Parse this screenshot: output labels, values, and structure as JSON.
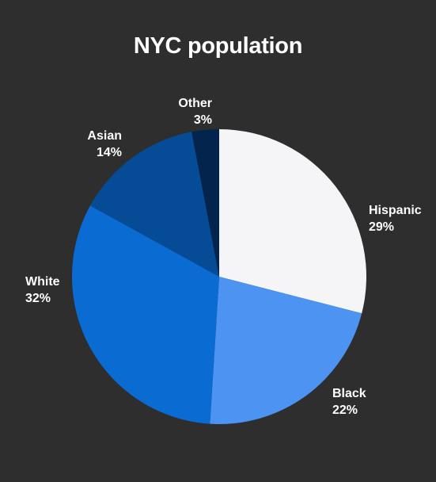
{
  "chart_data": {
    "type": "pie",
    "title": "NYC population",
    "slices": [
      {
        "label": "Hispanic",
        "value": 29,
        "value_label": "29%",
        "color": "#f5f5f7"
      },
      {
        "label": "Black",
        "value": 22,
        "value_label": "22%",
        "color": "#4c93f2"
      },
      {
        "label": "White",
        "value": 32,
        "value_label": "32%",
        "color": "#0a6cd3"
      },
      {
        "label": "Asian",
        "value": 14,
        "value_label": "14%",
        "color": "#064b95"
      },
      {
        "label": "Other",
        "value": 3,
        "value_label": "3%",
        "color": "#03244d"
      }
    ],
    "start": "12 o'clock",
    "direction": "clockwise"
  }
}
